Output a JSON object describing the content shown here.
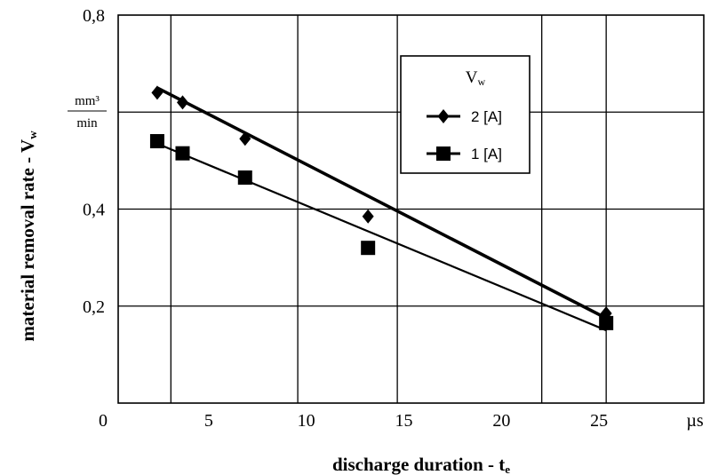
{
  "chart_data": {
    "type": "line",
    "title": "",
    "xlabel": "discharge duration - t",
    "xlabel_sub": "e",
    "ylabel": "material removal rate - V",
    "ylabel_sub": "w",
    "unit_x": "µs",
    "unit_y_num": "mm³",
    "unit_y_den": "min",
    "xlim": [
      0,
      30
    ],
    "ylim": [
      0,
      0.8
    ],
    "x_ticks": [
      "0",
      "5",
      "10",
      "15",
      "20",
      "25"
    ],
    "y_ticks": [
      "0,2",
      "0,4",
      "0,8"
    ],
    "legend_title": "V",
    "legend_title_sub": "w",
    "legend_position": "top-right",
    "grid": true,
    "series": [
      {
        "name": "2 [A]",
        "marker": "diamond",
        "x": [
          2,
          3.3,
          6.5,
          12.8,
          25
        ],
        "y": [
          0.64,
          0.62,
          0.545,
          0.385,
          0.185
        ],
        "fit": [
          [
            2,
            0.65
          ],
          [
            25,
            0.175
          ]
        ]
      },
      {
        "name": "1 [A]",
        "marker": "square",
        "x": [
          2,
          3.3,
          6.5,
          12.8,
          25
        ],
        "y": [
          0.54,
          0.515,
          0.465,
          0.32,
          0.165
        ],
        "fit": [
          [
            2,
            0.535
          ],
          [
            25,
            0.15
          ]
        ]
      }
    ],
    "colors": {
      "line": "#000000",
      "marker": "#000000",
      "background": "#ffffff"
    }
  }
}
